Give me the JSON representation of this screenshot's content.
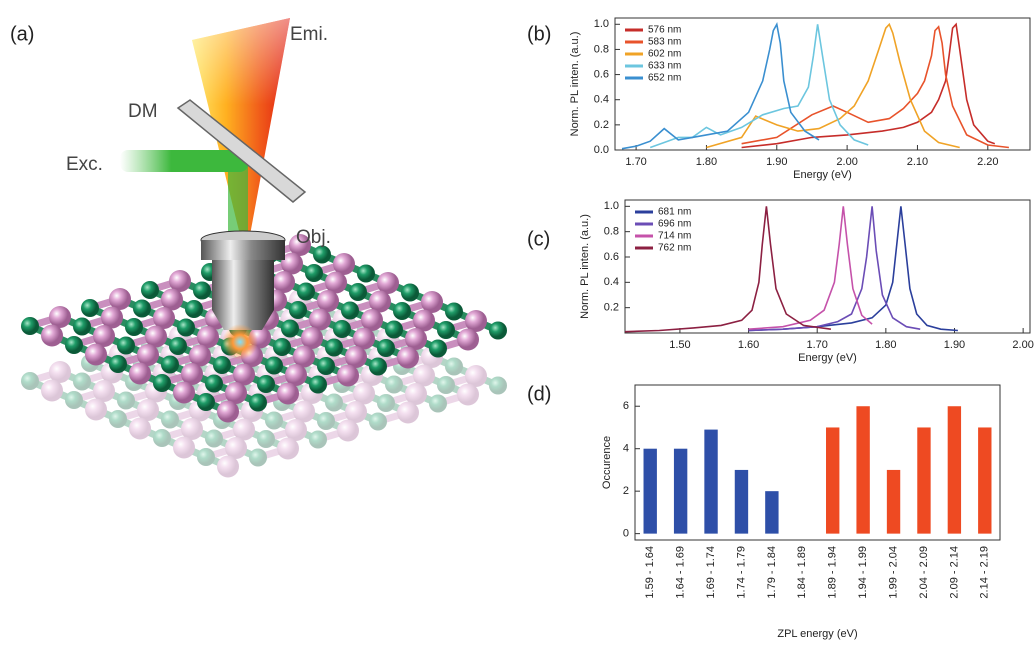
{
  "illustration": {
    "panel_label": "(a)",
    "emission_label": "Emi.",
    "mirror_label": "DM",
    "excitation_label": "Exc.",
    "objective_label": "Obj."
  },
  "chart_data": [
    {
      "type": "line",
      "panel_label": "(b)",
      "x_label": "Energy (eV)",
      "y_label": "Norm. PL inten. (a.u.)",
      "xlim": [
        1.67,
        2.26
      ],
      "ylim": [
        0,
        1.05
      ],
      "xticks": [
        {
          "value": 1.7,
          "label": "1.70"
        },
        {
          "value": 1.8,
          "label": "1.80"
        },
        {
          "value": 1.9,
          "label": "1.90"
        },
        {
          "value": 2.0,
          "label": "2.00"
        },
        {
          "value": 2.1,
          "label": "2.10"
        },
        {
          "value": 2.2,
          "label": "2.20"
        }
      ],
      "yticks": [
        {
          "value": 0,
          "label": "0.0"
        },
        0.2,
        0.4,
        0.6,
        0.8,
        {
          "value": 1,
          "label": "1.0"
        }
      ],
      "series": [
        {
          "name": "576 nm",
          "color": "#c62d2a",
          "x": [
            1.85,
            1.9,
            1.95,
            2.0,
            2.05,
            2.08,
            2.1,
            2.12,
            2.13,
            2.14,
            2.145,
            2.15,
            2.155,
            2.16,
            2.17,
            2.18,
            2.2,
            2.21
          ],
          "values": [
            0.02,
            0.05,
            0.1,
            0.12,
            0.15,
            0.18,
            0.22,
            0.3,
            0.4,
            0.55,
            0.75,
            0.97,
            1.0,
            0.8,
            0.4,
            0.2,
            0.07,
            0.05
          ]
        },
        {
          "name": "583 nm",
          "color": "#e8532b",
          "x": [
            1.85,
            1.9,
            1.95,
            1.98,
            2.0,
            2.03,
            2.06,
            2.08,
            2.1,
            2.11,
            2.12,
            2.125,
            2.13,
            2.135,
            2.14,
            2.15,
            2.17,
            2.2,
            2.23
          ],
          "values": [
            0.05,
            0.1,
            0.28,
            0.35,
            0.3,
            0.22,
            0.25,
            0.33,
            0.45,
            0.55,
            0.75,
            0.95,
            0.98,
            0.85,
            0.6,
            0.35,
            0.12,
            0.04,
            0.02
          ]
        },
        {
          "name": "602 nm",
          "color": "#f0a326",
          "x": [
            1.8,
            1.85,
            1.87,
            1.9,
            1.93,
            1.96,
            1.99,
            2.01,
            2.03,
            2.045,
            2.055,
            2.06,
            2.065,
            2.075,
            2.09,
            2.11,
            2.13,
            2.16
          ],
          "values": [
            0.02,
            0.1,
            0.27,
            0.2,
            0.15,
            0.17,
            0.25,
            0.35,
            0.55,
            0.8,
            0.97,
            1.0,
            0.93,
            0.7,
            0.4,
            0.15,
            0.06,
            0.02
          ]
        },
        {
          "name": "633 nm",
          "color": "#6cc6df",
          "x": [
            1.72,
            1.74,
            1.76,
            1.78,
            1.8,
            1.82,
            1.85,
            1.88,
            1.91,
            1.93,
            1.945,
            1.952,
            1.958,
            1.965,
            1.975,
            1.99,
            2.01,
            2.03
          ],
          "values": [
            0.02,
            0.06,
            0.1,
            0.1,
            0.18,
            0.12,
            0.18,
            0.28,
            0.33,
            0.35,
            0.5,
            0.75,
            1.0,
            0.75,
            0.4,
            0.2,
            0.08,
            0.04
          ]
        },
        {
          "name": "652 nm",
          "color": "#3a8fd0",
          "x": [
            1.68,
            1.7,
            1.72,
            1.74,
            1.76,
            1.78,
            1.8,
            1.83,
            1.86,
            1.88,
            1.89,
            1.895,
            1.9,
            1.905,
            1.91,
            1.92,
            1.94,
            1.96
          ],
          "values": [
            0.01,
            0.03,
            0.07,
            0.17,
            0.08,
            0.1,
            0.12,
            0.15,
            0.3,
            0.55,
            0.8,
            0.95,
            1.0,
            0.85,
            0.55,
            0.3,
            0.15,
            0.08
          ]
        }
      ]
    },
    {
      "type": "line",
      "panel_label": "(c)",
      "x_label": "Energy (eV)",
      "y_label": "Norm. PL inten. (a.u.)",
      "xlim": [
        1.42,
        2.01
      ],
      "ylim": [
        0,
        1.05
      ],
      "xticks": [
        {
          "value": 1.5,
          "label": "1.50"
        },
        {
          "value": 1.6,
          "label": "1.60"
        },
        {
          "value": 1.7,
          "label": "1.70"
        },
        {
          "value": 1.8,
          "label": "1.80"
        },
        {
          "value": 1.9,
          "label": "1.90"
        },
        {
          "value": 2.0,
          "label": "2.00"
        }
      ],
      "yticks": [
        0.2,
        0.4,
        0.6,
        0.8,
        {
          "value": 1,
          "label": "1.0"
        }
      ],
      "series": [
        {
          "name": "681 nm",
          "color": "#2b3f9c",
          "x": [
            1.6,
            1.65,
            1.7,
            1.75,
            1.78,
            1.8,
            1.81,
            1.815,
            1.822,
            1.828,
            1.835,
            1.845,
            1.86,
            1.88,
            1.905
          ],
          "values": [
            0.02,
            0.03,
            0.05,
            0.08,
            0.12,
            0.22,
            0.4,
            0.65,
            1.0,
            0.7,
            0.35,
            0.15,
            0.06,
            0.03,
            0.02
          ]
        },
        {
          "name": "696 nm",
          "color": "#6b4db6",
          "x": [
            1.6,
            1.65,
            1.7,
            1.73,
            1.75,
            1.765,
            1.772,
            1.78,
            1.786,
            1.795,
            1.81,
            1.83,
            1.85
          ],
          "values": [
            0.02,
            0.03,
            0.05,
            0.09,
            0.15,
            0.35,
            0.6,
            1.0,
            0.65,
            0.3,
            0.12,
            0.05,
            0.03
          ]
        },
        {
          "name": "714 nm",
          "color": "#c552aa",
          "x": [
            1.6,
            1.65,
            1.69,
            1.71,
            1.725,
            1.732,
            1.738,
            1.744,
            1.752,
            1.765,
            1.78
          ],
          "values": [
            0.03,
            0.05,
            0.1,
            0.18,
            0.4,
            0.7,
            1.0,
            0.7,
            0.35,
            0.14,
            0.07
          ]
        },
        {
          "name": "762 nm",
          "color": "#8c2042",
          "x": [
            1.42,
            1.47,
            1.52,
            1.56,
            1.59,
            1.605,
            1.615,
            1.62,
            1.626,
            1.632,
            1.64,
            1.655,
            1.68,
            1.72
          ],
          "values": [
            0.01,
            0.02,
            0.04,
            0.06,
            0.1,
            0.18,
            0.4,
            0.7,
            1.0,
            0.7,
            0.35,
            0.15,
            0.06,
            0.03
          ]
        }
      ]
    },
    {
      "type": "bar",
      "panel_label": "(d)",
      "x_label": "ZPL energy (eV)",
      "y_label": "Occurence",
      "categories": [
        "1.59 - 1.64",
        "1.64 - 1.69",
        "1.69 - 1.74",
        "1.74 - 1.79",
        "1.79 - 1.84",
        "1.84 - 1.89",
        "1.89 - 1.94",
        "1.94 - 1.99",
        "1.99 - 2.04",
        "2.04 - 2.09",
        "2.09 - 2.14",
        "2.14 - 2.19"
      ],
      "values": [
        4,
        4,
        4.9,
        3,
        2,
        0,
        5,
        6,
        3,
        5,
        6,
        5
      ],
      "colors": [
        "#2e4fa8",
        "#2e4fa8",
        "#2e4fa8",
        "#2e4fa8",
        "#2e4fa8",
        "#2e4fa8",
        "#ee4a22",
        "#ee4a22",
        "#ee4a22",
        "#ee4a22",
        "#ee4a22",
        "#ee4a22"
      ],
      "ylim": [
        -0.3,
        7
      ],
      "yticks": [
        0,
        2,
        4,
        6
      ]
    }
  ]
}
